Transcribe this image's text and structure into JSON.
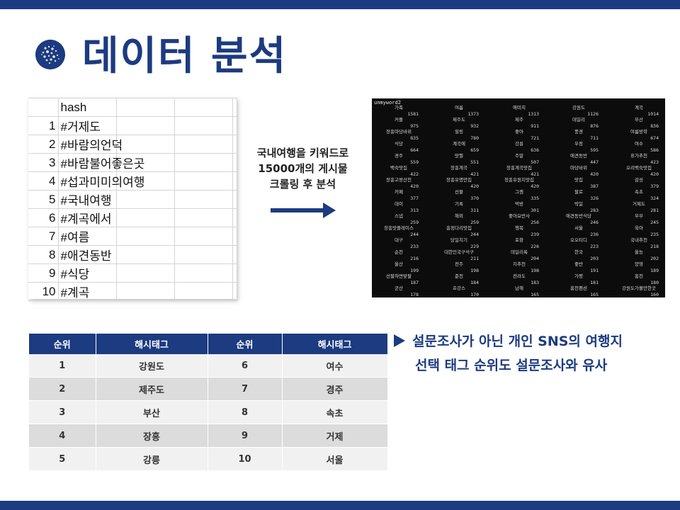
{
  "title": "데이터 분석",
  "sheet": {
    "header": "hash",
    "rows": [
      {
        "n": "1",
        "v": "#거제도"
      },
      {
        "n": "2",
        "v": "#바람의언덕"
      },
      {
        "n": "3",
        "v": "#바람불어좋은곳"
      },
      {
        "n": "4",
        "v": "#섭과미미의여행"
      },
      {
        "n": "5",
        "v": "#국내여행"
      },
      {
        "n": "6",
        "v": "#계곡에서"
      },
      {
        "n": "7",
        "v": "#여름"
      },
      {
        "n": "8",
        "v": "#애견동반"
      },
      {
        "n": "9",
        "v": "#식당"
      },
      {
        "n": "10",
        "v": "#계곡"
      }
    ]
  },
  "middle": {
    "lines": [
      "국내여행을 키워드로",
      "15000개의 게시물",
      "크롤링 후 분석"
    ]
  },
  "terminal": {
    "header": "unmyword2",
    "rows": [
      [
        "가족",
        "여름",
        "애미치",
        "강원도",
        "계곡"
      ],
      [
        "1581",
        "1373",
        "1313",
        "1126",
        "1014"
      ],
      [
        "커플",
        "제주도",
        "제주",
        "데일리",
        "부산"
      ],
      [
        "975",
        "932",
        "911",
        "876",
        "836"
      ],
      [
        "장흥마당바위",
        "힐링",
        "좋아",
        "풍경",
        "여름방학"
      ],
      [
        "835",
        "780",
        "721",
        "711",
        "674"
      ],
      [
        "식당",
        "계곡에",
        "강릉",
        "우정",
        "여수"
      ],
      [
        "664",
        "659",
        "636",
        "595",
        "586"
      ],
      [
        "경주",
        "맛찔",
        "주말",
        "애견동반",
        "휴가추천"
      ],
      [
        "559",
        "551",
        "507",
        "447",
        "423"
      ],
      [
        "백숙맛집",
        "장흥계곡",
        "장흥계곡맛집",
        "마당바위",
        "오리백숙맛집"
      ],
      [
        "422",
        "421",
        "421",
        "420",
        "420"
      ],
      [
        "장흥고왕산천",
        "장흥유명만집",
        "장흥유원지맛집",
        "맛집",
        "감성"
      ],
      [
        "420",
        "420",
        "420",
        "387",
        "379"
      ],
      [
        "카페",
        "선물",
        "그램",
        "팔로",
        "속초"
      ],
      [
        "377",
        "370",
        "335",
        "326",
        "324"
      ],
      [
        "데이",
        "기록",
        "먹방",
        "박일",
        "거제도"
      ],
      [
        "313",
        "311",
        "301",
        "283",
        "281"
      ],
      [
        "스냅",
        "해외",
        "좋아요반사",
        "애견동반식당",
        "부부"
      ],
      [
        "259",
        "259",
        "256",
        "246",
        "245"
      ],
      [
        "장흥맛플레이스",
        "흥정다리맛집",
        "행복",
        "서울",
        "육아"
      ],
      [
        "244",
        "244",
        "239",
        "236",
        "235"
      ],
      [
        "대구",
        "당일치기",
        "포항",
        "오오티디",
        "국내추천"
      ],
      [
        "233",
        "229",
        "226",
        "223",
        "218"
      ],
      [
        "순천",
        "대한민국구석구",
        "데일리룩",
        "한국",
        "울능"
      ],
      [
        "216",
        "211",
        "204",
        "203",
        "202"
      ],
      [
        "울산",
        "전주",
        "지추천",
        "좋반",
        "양영"
      ],
      [
        "199",
        "198",
        "198",
        "191",
        "189"
      ],
      [
        "선팔하면맞팔",
        "준천",
        "전라도",
        "가평",
        "홍천"
      ],
      [
        "187",
        "184",
        "183",
        "181",
        "180"
      ],
      [
        "군산",
        "호강스",
        "남해",
        "홍천펜션",
        "강원도가볼만한곳"
      ],
      [
        "178",
        "170",
        "165",
        "165",
        "160"
      ]
    ]
  },
  "ranking": {
    "headers": [
      "순위",
      "해시태그",
      "순위",
      "해시태그"
    ],
    "rows": [
      [
        "1",
        "강원도",
        "6",
        "여수"
      ],
      [
        "2",
        "제주도",
        "7",
        "경주"
      ],
      [
        "3",
        "부산",
        "8",
        "속초"
      ],
      [
        "4",
        "장흥",
        "9",
        "거제"
      ],
      [
        "5",
        "강릉",
        "10",
        "서울"
      ]
    ]
  },
  "note": {
    "line1": "설문조사가 아닌 개인 SNS의 여행지",
    "line2": "선택 태그 순위도 설문조사와 유사"
  },
  "colors": {
    "brand": "#1c3b80",
    "row_light": "#f1f1f1",
    "row_dark": "#dcdcdc"
  }
}
